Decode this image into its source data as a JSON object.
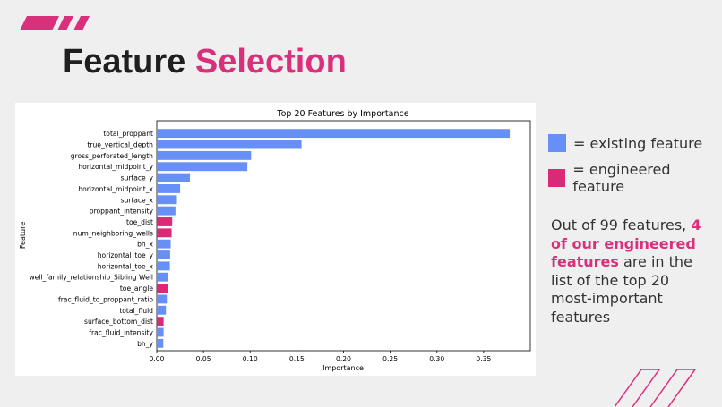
{
  "slide": {
    "title_plain": "Feature",
    "title_highlight": "Selection"
  },
  "legend": {
    "existing_label": "= existing feature",
    "engineered_label": "= engineered feature",
    "existing_color": "#6690f7",
    "engineered_color": "#d92a78"
  },
  "note": {
    "before": "Out of 99 features,",
    "highlight": "4 of our engineered features",
    "after": "are in the list of the top 20 most-important features"
  },
  "chart_data": {
    "type": "bar",
    "orientation": "horizontal",
    "title": "Top 20 Features by Importance",
    "xlabel": "Importance",
    "ylabel": "Feature",
    "xlim": [
      0,
      0.4
    ],
    "xticks": [
      "0.00",
      "0.05",
      "0.10",
      "0.15",
      "0.20",
      "0.25",
      "0.30",
      "0.35"
    ],
    "categories": [
      "total_proppant",
      "true_vertical_depth",
      "gross_perforated_length",
      "horizontal_midpoint_y",
      "surface_y",
      "horizontal_midpoint_x",
      "surface_x",
      "proppant_intensity",
      "toe_dist",
      "num_neighboring_wells",
      "bh_x",
      "horizontal_toe_y",
      "horizontal_toe_x",
      "well_family_relationship_Sibling Well",
      "toe_angle",
      "frac_fluid_to_proppant_ratio",
      "total_fluid",
      "surface_bottom_dist",
      "frac_fluid_intensity",
      "bh_y"
    ],
    "values": [
      0.378,
      0.155,
      0.101,
      0.097,
      0.0355,
      0.025,
      0.0216,
      0.02,
      0.0165,
      0.0159,
      0.0149,
      0.0143,
      0.014,
      0.0124,
      0.0117,
      0.0108,
      0.0098,
      0.0073,
      0.0073,
      0.007
    ],
    "engineered": [
      false,
      false,
      false,
      false,
      false,
      false,
      false,
      false,
      true,
      true,
      false,
      false,
      false,
      false,
      true,
      false,
      false,
      true,
      false,
      false
    ]
  }
}
